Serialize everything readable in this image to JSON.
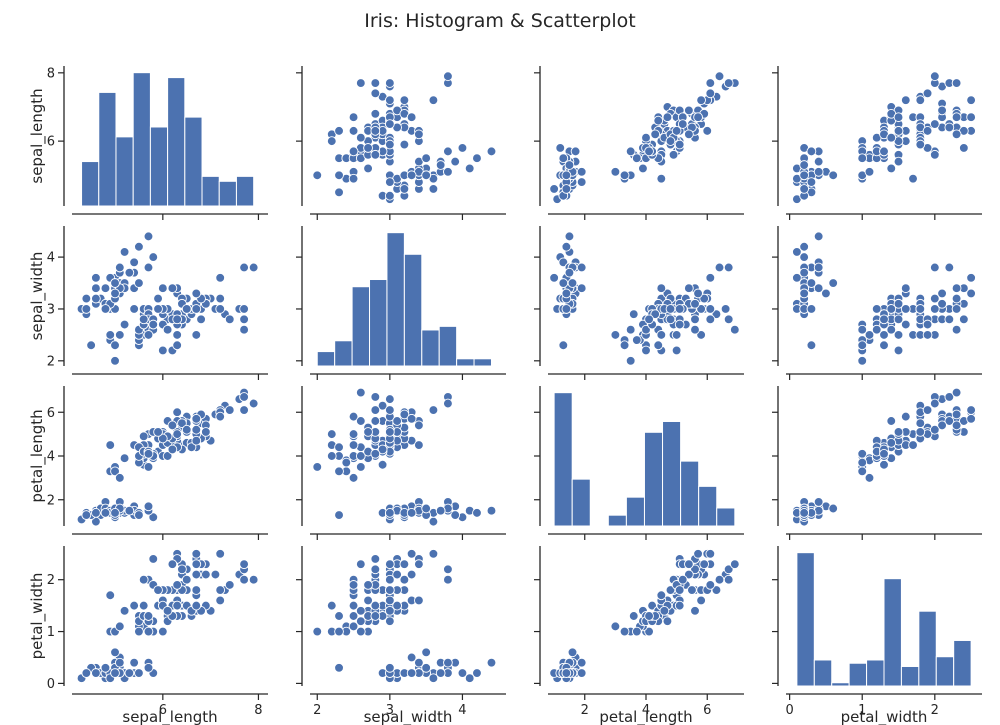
{
  "chart_data": {
    "type": "scatter",
    "title": "Iris: Histogram & Scatterplot",
    "variables": [
      "sepal_length",
      "sepal_width",
      "petal_length",
      "petal_width"
    ],
    "axes": {
      "sepal_length": {
        "lim": [
          4.1,
          8.2
        ],
        "ticks": [
          6,
          8
        ]
      },
      "sepal_width": {
        "lim": [
          1.9,
          4.6
        ],
        "ticks": [
          2,
          3,
          4
        ]
      },
      "petal_length": {
        "lim": [
          0.8,
          7.2
        ],
        "ticks": [
          2,
          4,
          6
        ]
      },
      "petal_width": {
        "lim": [
          -0.05,
          2.65
        ],
        "ticks": [
          0,
          1,
          2
        ]
      }
    },
    "x_axis_ticks": {
      "sepal_length": [
        6,
        8
      ],
      "sepal_width": [
        2,
        3,
        4
      ],
      "petal_length": [
        2,
        4,
        6
      ],
      "petal_width": [
        0,
        1,
        2
      ]
    },
    "histograms": {
      "sepal_length": {
        "edges": [
          4.3,
          4.66,
          5.02,
          5.38,
          5.74,
          6.1,
          6.46,
          6.82,
          7.18,
          7.54,
          7.9
        ],
        "counts": [
          9,
          23,
          14,
          27,
          16,
          26,
          18,
          6,
          5,
          6
        ]
      },
      "sepal_width": {
        "edges": [
          2.0,
          2.24,
          2.48,
          2.72,
          2.96,
          3.2,
          3.44,
          3.68,
          3.92,
          4.16,
          4.4
        ],
        "counts": [
          4,
          7,
          22,
          24,
          37,
          31,
          10,
          11,
          2,
          2
        ]
      },
      "petal_length": {
        "edges": [
          1.0,
          1.59,
          2.18,
          2.77,
          3.36,
          3.95,
          4.54,
          5.13,
          5.72,
          6.31,
          6.9
        ],
        "counts": [
          37,
          13,
          0,
          3,
          8,
          26,
          29,
          18,
          11,
          5
        ]
      },
      "petal_width": {
        "edges": [
          0.1,
          0.34,
          0.58,
          0.82,
          1.06,
          1.3,
          1.54,
          1.78,
          2.02,
          2.26,
          2.5
        ],
        "counts": [
          41,
          8,
          1,
          7,
          8,
          33,
          6,
          23,
          9,
          14
        ]
      }
    },
    "data": [
      [
        5.1,
        3.5,
        1.4,
        0.2
      ],
      [
        4.9,
        3.0,
        1.4,
        0.2
      ],
      [
        4.7,
        3.2,
        1.3,
        0.2
      ],
      [
        4.6,
        3.1,
        1.5,
        0.2
      ],
      [
        5.0,
        3.6,
        1.4,
        0.2
      ],
      [
        5.4,
        3.9,
        1.7,
        0.4
      ],
      [
        4.6,
        3.4,
        1.4,
        0.3
      ],
      [
        5.0,
        3.4,
        1.5,
        0.2
      ],
      [
        4.4,
        2.9,
        1.4,
        0.2
      ],
      [
        4.9,
        3.1,
        1.5,
        0.1
      ],
      [
        5.4,
        3.7,
        1.5,
        0.2
      ],
      [
        4.8,
        3.4,
        1.6,
        0.2
      ],
      [
        4.8,
        3.0,
        1.4,
        0.1
      ],
      [
        4.3,
        3.0,
        1.1,
        0.1
      ],
      [
        5.8,
        4.0,
        1.2,
        0.2
      ],
      [
        5.7,
        4.4,
        1.5,
        0.4
      ],
      [
        5.4,
        3.9,
        1.3,
        0.4
      ],
      [
        5.1,
        3.5,
        1.4,
        0.3
      ],
      [
        5.7,
        3.8,
        1.7,
        0.3
      ],
      [
        5.1,
        3.8,
        1.5,
        0.3
      ],
      [
        5.4,
        3.4,
        1.7,
        0.2
      ],
      [
        5.1,
        3.7,
        1.5,
        0.4
      ],
      [
        4.6,
        3.6,
        1.0,
        0.2
      ],
      [
        5.1,
        3.3,
        1.7,
        0.5
      ],
      [
        4.8,
        3.4,
        1.9,
        0.2
      ],
      [
        5.0,
        3.0,
        1.6,
        0.2
      ],
      [
        5.0,
        3.4,
        1.6,
        0.4
      ],
      [
        5.2,
        3.5,
        1.5,
        0.2
      ],
      [
        5.2,
        3.4,
        1.4,
        0.2
      ],
      [
        4.7,
        3.2,
        1.6,
        0.2
      ],
      [
        4.8,
        3.1,
        1.6,
        0.2
      ],
      [
        5.4,
        3.4,
        1.5,
        0.4
      ],
      [
        5.2,
        4.1,
        1.5,
        0.1
      ],
      [
        5.5,
        4.2,
        1.4,
        0.2
      ],
      [
        4.9,
        3.1,
        1.5,
        0.2
      ],
      [
        5.0,
        3.2,
        1.2,
        0.2
      ],
      [
        5.5,
        3.5,
        1.3,
        0.2
      ],
      [
        4.9,
        3.6,
        1.4,
        0.1
      ],
      [
        4.4,
        3.0,
        1.3,
        0.2
      ],
      [
        5.1,
        3.4,
        1.5,
        0.2
      ],
      [
        5.0,
        3.5,
        1.3,
        0.3
      ],
      [
        4.5,
        2.3,
        1.3,
        0.3
      ],
      [
        4.4,
        3.2,
        1.3,
        0.2
      ],
      [
        5.0,
        3.5,
        1.6,
        0.6
      ],
      [
        5.1,
        3.8,
        1.9,
        0.4
      ],
      [
        4.8,
        3.0,
        1.4,
        0.3
      ],
      [
        5.1,
        3.8,
        1.6,
        0.2
      ],
      [
        4.6,
        3.2,
        1.4,
        0.2
      ],
      [
        5.3,
        3.7,
        1.5,
        0.2
      ],
      [
        5.0,
        3.3,
        1.4,
        0.2
      ],
      [
        7.0,
        3.2,
        4.7,
        1.4
      ],
      [
        6.4,
        3.2,
        4.5,
        1.5
      ],
      [
        6.9,
        3.1,
        4.9,
        1.5
      ],
      [
        5.5,
        2.3,
        4.0,
        1.3
      ],
      [
        6.5,
        2.8,
        4.6,
        1.5
      ],
      [
        5.7,
        2.8,
        4.5,
        1.3
      ],
      [
        6.3,
        3.3,
        4.7,
        1.6
      ],
      [
        4.9,
        2.4,
        3.3,
        1.0
      ],
      [
        6.6,
        2.9,
        4.6,
        1.3
      ],
      [
        5.2,
        2.7,
        3.9,
        1.4
      ],
      [
        5.0,
        2.0,
        3.5,
        1.0
      ],
      [
        5.9,
        3.0,
        4.2,
        1.5
      ],
      [
        6.0,
        2.2,
        4.0,
        1.0
      ],
      [
        6.1,
        2.9,
        4.7,
        1.4
      ],
      [
        5.6,
        2.9,
        3.6,
        1.3
      ],
      [
        6.7,
        3.1,
        4.4,
        1.4
      ],
      [
        5.6,
        3.0,
        4.5,
        1.5
      ],
      [
        5.8,
        2.7,
        4.1,
        1.0
      ],
      [
        6.2,
        2.2,
        4.5,
        1.5
      ],
      [
        5.6,
        2.5,
        3.9,
        1.1
      ],
      [
        5.9,
        3.2,
        4.8,
        1.8
      ],
      [
        6.1,
        2.8,
        4.0,
        1.3
      ],
      [
        6.3,
        2.5,
        4.9,
        1.5
      ],
      [
        6.1,
        2.8,
        4.7,
        1.2
      ],
      [
        6.4,
        2.9,
        4.3,
        1.3
      ],
      [
        6.6,
        3.0,
        4.4,
        1.4
      ],
      [
        6.8,
        2.8,
        4.8,
        1.4
      ],
      [
        6.7,
        3.0,
        5.0,
        1.7
      ],
      [
        6.0,
        2.9,
        4.5,
        1.5
      ],
      [
        5.7,
        2.6,
        3.5,
        1.0
      ],
      [
        5.5,
        2.4,
        3.8,
        1.1
      ],
      [
        5.5,
        2.4,
        3.7,
        1.0
      ],
      [
        5.8,
        2.7,
        3.9,
        1.2
      ],
      [
        6.0,
        2.7,
        5.1,
        1.6
      ],
      [
        5.4,
        3.0,
        4.5,
        1.5
      ],
      [
        6.0,
        3.4,
        4.5,
        1.6
      ],
      [
        6.7,
        3.1,
        4.7,
        1.5
      ],
      [
        6.3,
        2.3,
        4.4,
        1.3
      ],
      [
        5.6,
        3.0,
        4.1,
        1.3
      ],
      [
        5.5,
        2.5,
        4.0,
        1.3
      ],
      [
        5.5,
        2.6,
        4.4,
        1.2
      ],
      [
        6.1,
        3.0,
        4.6,
        1.4
      ],
      [
        5.8,
        2.6,
        4.0,
        1.2
      ],
      [
        5.0,
        2.3,
        3.3,
        1.0
      ],
      [
        5.6,
        2.7,
        4.2,
        1.3
      ],
      [
        5.7,
        3.0,
        4.2,
        1.2
      ],
      [
        5.7,
        2.9,
        4.2,
        1.3
      ],
      [
        6.2,
        2.9,
        4.3,
        1.3
      ],
      [
        5.1,
        2.5,
        3.0,
        1.1
      ],
      [
        5.7,
        2.8,
        4.1,
        1.3
      ],
      [
        6.3,
        3.3,
        6.0,
        2.5
      ],
      [
        5.8,
        2.7,
        5.1,
        1.9
      ],
      [
        7.1,
        3.0,
        5.9,
        2.1
      ],
      [
        6.3,
        2.9,
        5.6,
        1.8
      ],
      [
        6.5,
        3.0,
        5.8,
        2.2
      ],
      [
        7.6,
        3.0,
        6.6,
        2.1
      ],
      [
        4.9,
        2.5,
        4.5,
        1.7
      ],
      [
        7.3,
        2.9,
        6.3,
        1.8
      ],
      [
        6.7,
        2.5,
        5.8,
        1.8
      ],
      [
        7.2,
        3.6,
        6.1,
        2.5
      ],
      [
        6.5,
        3.2,
        5.1,
        2.0
      ],
      [
        6.4,
        2.7,
        5.3,
        1.9
      ],
      [
        6.8,
        3.0,
        5.5,
        2.1
      ],
      [
        5.7,
        2.5,
        5.0,
        2.0
      ],
      [
        5.8,
        2.8,
        5.1,
        2.4
      ],
      [
        6.4,
        3.2,
        5.3,
        2.3
      ],
      [
        6.5,
        3.0,
        5.5,
        1.8
      ],
      [
        7.7,
        3.8,
        6.7,
        2.2
      ],
      [
        7.7,
        2.6,
        6.9,
        2.3
      ],
      [
        6.0,
        2.2,
        5.0,
        1.5
      ],
      [
        6.9,
        3.2,
        5.7,
        2.3
      ],
      [
        5.6,
        2.8,
        4.9,
        2.0
      ],
      [
        7.7,
        2.8,
        6.7,
        2.0
      ],
      [
        6.3,
        2.7,
        4.9,
        1.8
      ],
      [
        6.7,
        3.3,
        5.7,
        2.1
      ],
      [
        7.2,
        3.2,
        6.0,
        1.8
      ],
      [
        6.2,
        2.8,
        4.8,
        1.8
      ],
      [
        6.1,
        3.0,
        4.9,
        1.8
      ],
      [
        6.4,
        2.8,
        5.6,
        2.1
      ],
      [
        7.2,
        3.0,
        5.8,
        1.6
      ],
      [
        7.4,
        2.8,
        6.1,
        1.9
      ],
      [
        7.9,
        3.8,
        6.4,
        2.0
      ],
      [
        6.4,
        2.8,
        5.6,
        2.2
      ],
      [
        6.3,
        2.8,
        5.1,
        1.5
      ],
      [
        6.1,
        2.6,
        5.6,
        1.4
      ],
      [
        7.7,
        3.0,
        6.1,
        2.3
      ],
      [
        6.3,
        3.4,
        5.6,
        2.4
      ],
      [
        6.4,
        3.1,
        5.5,
        1.8
      ],
      [
        6.0,
        3.0,
        4.8,
        1.8
      ],
      [
        6.9,
        3.1,
        5.4,
        2.1
      ],
      [
        6.7,
        3.1,
        5.6,
        2.4
      ],
      [
        6.9,
        3.1,
        5.1,
        2.3
      ],
      [
        5.8,
        2.7,
        5.1,
        1.9
      ],
      [
        6.8,
        3.2,
        5.9,
        2.3
      ],
      [
        6.7,
        3.3,
        5.7,
        2.5
      ],
      [
        6.7,
        3.0,
        5.2,
        2.3
      ],
      [
        6.3,
        2.5,
        5.0,
        1.9
      ],
      [
        6.5,
        3.0,
        5.2,
        2.0
      ],
      [
        6.2,
        3.4,
        5.4,
        2.3
      ],
      [
        5.9,
        3.0,
        5.1,
        1.8
      ]
    ],
    "colors": {
      "marker": "#4c72b0",
      "bar": "#4c72b0",
      "edge": "#ffffff",
      "axis": "#262626"
    },
    "grid": false,
    "legend": "none"
  }
}
